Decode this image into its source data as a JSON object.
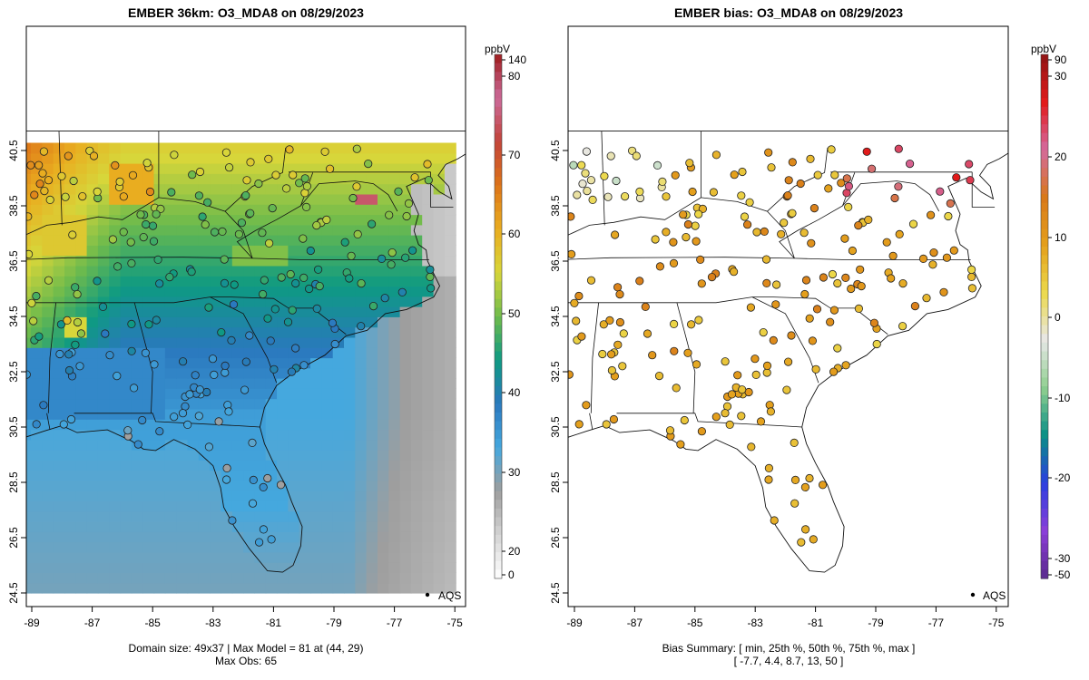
{
  "left_panel": {
    "title": "EMBER 36km: O3_MDA8 on 08/29/2023",
    "caption_line1": "Domain size: 49x37 | Max Model = 81 at (44, 29)",
    "caption_line2": "Max Obs: 65",
    "legend_label": "AQS",
    "x_ticks": [
      "-89",
      "-87",
      "-85",
      "-83",
      "-81",
      "-79",
      "-77",
      "-75"
    ],
    "y_ticks": [
      "24.5",
      "26.5",
      "28.5",
      "30.5",
      "32.5",
      "34.5",
      "36.5",
      "38.5",
      "40.5"
    ],
    "colorbar": {
      "unit": "ppbV",
      "labels": [
        "140",
        "80",
        "70",
        "60",
        "50",
        "40",
        "30",
        "20",
        "0"
      ],
      "stops": [
        {
          "v": 0,
          "color": "#ffffff"
        },
        {
          "v": 20,
          "color": "#d4d4d4"
        },
        {
          "v": 28,
          "color": "#9e9e9e"
        },
        {
          "v": 31,
          "color": "#45a8de"
        },
        {
          "v": 40,
          "color": "#2a78be"
        },
        {
          "v": 46,
          "color": "#0e9a82"
        },
        {
          "v": 52,
          "color": "#6fbb4c"
        },
        {
          "v": 58,
          "color": "#d7d63a"
        },
        {
          "v": 64,
          "color": "#e9ad20"
        },
        {
          "v": 70,
          "color": "#dd7418"
        },
        {
          "v": 76,
          "color": "#c2443a"
        },
        {
          "v": 80,
          "color": "#cc6a9a"
        },
        {
          "v": 140,
          "color": "#9e1c1c"
        }
      ]
    }
  },
  "right_panel": {
    "title": "EMBER bias: O3_MDA8 on 08/29/2023",
    "caption_line1": "Bias Summary: [ min, 25th %, 50th %, 75th %, max ]",
    "caption_line2": "[ -7.7,   4.4,   8.7,   13,   50 ]",
    "legend_label": "AQS",
    "x_ticks": [
      "-89",
      "-87",
      "-85",
      "-83",
      "-81",
      "-79",
      "-77",
      "-75"
    ],
    "y_ticks": [
      "24.5",
      "26.5",
      "28.5",
      "30.5",
      "32.5",
      "34.5",
      "36.5",
      "38.5",
      "40.5"
    ],
    "colorbar": {
      "unit": "ppbV",
      "labels": [
        "90",
        "30",
        "20",
        "10",
        "0",
        "-10",
        "-20",
        "-30",
        "-50"
      ],
      "stops": [
        {
          "v": -50,
          "color": "#5b2a8e"
        },
        {
          "v": -30,
          "color": "#8b3fd8"
        },
        {
          "v": -20,
          "color": "#2a3ee0"
        },
        {
          "v": -10,
          "color": "#0a8f86"
        },
        {
          "v": -3,
          "color": "#8fcf8f"
        },
        {
          "v": 0,
          "color": "#e8e8e8"
        },
        {
          "v": 4,
          "color": "#ecd94a"
        },
        {
          "v": 10,
          "color": "#e4a01c"
        },
        {
          "v": 17,
          "color": "#d8781a"
        },
        {
          "v": 20,
          "color": "#d46a9e"
        },
        {
          "v": 30,
          "color": "#e21a1a"
        },
        {
          "v": 90,
          "color": "#8e1414"
        }
      ]
    }
  }
}
